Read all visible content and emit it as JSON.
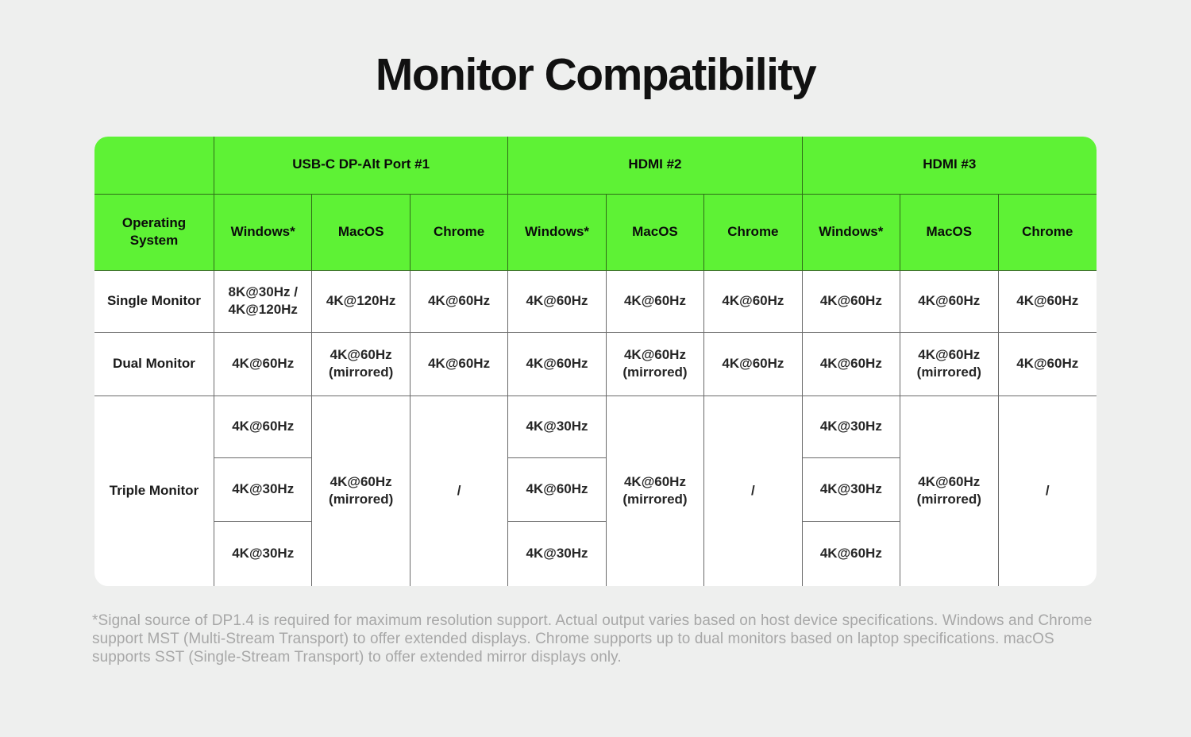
{
  "page": {
    "title": "Monitor Compatibility",
    "footnote": "*Signal source of DP1.4 is required for maximum resolution support. Actual output varies based on host device specifications. Windows and Chrome support MST (Multi-Stream Transport) to offer extended displays. Chrome supports up to dual monitors based on laptop specifications. macOS supports SST (Single-Stream Transport) to offer extended mirror displays only."
  },
  "colors": {
    "page_background": "#eeefee",
    "header_green": "#5ef235",
    "green_divider": "#2f6d18",
    "cell_divider": "#6a6a6a",
    "table_background": "#ffffff",
    "footnote_gray": "#a7a7a7",
    "text_dark": "#111111"
  },
  "table": {
    "os_header": "Operating System",
    "groups": [
      "USB-C DP-Alt Port #1",
      "HDMI #2",
      "HDMI #3"
    ],
    "os_columns": [
      "Windows*",
      "MacOS",
      "Chrome"
    ],
    "rows": [
      {
        "label": "Single Monitor",
        "cells": [
          "8K@30Hz / 4K@120Hz",
          "4K@120Hz",
          "4K@60Hz",
          "4K@60Hz",
          "4K@60Hz",
          "4K@60Hz",
          "4K@60Hz",
          "4K@60Hz",
          "4K@60Hz"
        ]
      },
      {
        "label": "Dual Monitor",
        "cells": [
          "4K@60Hz",
          "4K@60Hz (mirrored)",
          "4K@60Hz",
          "4K@60Hz",
          "4K@60Hz (mirrored)",
          "4K@60Hz",
          "4K@60Hz",
          "4K@60Hz (mirrored)",
          "4K@60Hz"
        ]
      }
    ],
    "triple": {
      "label": "Triple Monitor",
      "ports": [
        {
          "windows": [
            "4K@60Hz",
            "4K@30Hz",
            "4K@30Hz"
          ],
          "macos": "4K@60Hz (mirrored)",
          "chrome": "/"
        },
        {
          "windows": [
            "4K@30Hz",
            "4K@60Hz",
            "4K@30Hz"
          ],
          "macos": "4K@60Hz (mirrored)",
          "chrome": "/"
        },
        {
          "windows": [
            "4K@30Hz",
            "4K@30Hz",
            "4K@60Hz"
          ],
          "macos": "4K@60Hz (mirrored)",
          "chrome": "/"
        }
      ]
    }
  },
  "chart_data": {
    "type": "table",
    "title": "Monitor Compatibility",
    "column_groups": [
      "USB-C DP-Alt Port #1",
      "HDMI #2",
      "HDMI #3"
    ],
    "columns": [
      "Windows*",
      "MacOS",
      "Chrome",
      "Windows*",
      "MacOS",
      "Chrome",
      "Windows*",
      "MacOS",
      "Chrome"
    ],
    "row_labels": [
      "Single Monitor",
      "Dual Monitor",
      "Triple Monitor"
    ],
    "rows": [
      [
        "8K@30Hz / 4K@120Hz",
        "4K@120Hz",
        "4K@60Hz",
        "4K@60Hz",
        "4K@60Hz",
        "4K@60Hz",
        "4K@60Hz",
        "4K@60Hz",
        "4K@60Hz"
      ],
      [
        "4K@60Hz",
        "4K@60Hz (mirrored)",
        "4K@60Hz",
        "4K@60Hz",
        "4K@60Hz (mirrored)",
        "4K@60Hz",
        "4K@60Hz",
        "4K@60Hz (mirrored)",
        "4K@60Hz"
      ],
      [
        [
          "4K@60Hz",
          "4K@30Hz",
          "4K@30Hz"
        ],
        "4K@60Hz (mirrored)",
        "/",
        [
          "4K@30Hz",
          "4K@60Hz",
          "4K@30Hz"
        ],
        "4K@60Hz (mirrored)",
        "/",
        [
          "4K@30Hz",
          "4K@30Hz",
          "4K@60Hz"
        ],
        "4K@60Hz (mirrored)",
        "/"
      ]
    ],
    "footnote": "*Signal source of DP1.4 is required for maximum resolution support. Actual output varies based on host device specifications. Windows and Chrome support MST (Multi-Stream Transport) to offer extended displays. Chrome supports up to dual monitors based on laptop specifications. macOS supports SST (Single-Stream Transport) to offer extended mirror displays only."
  }
}
